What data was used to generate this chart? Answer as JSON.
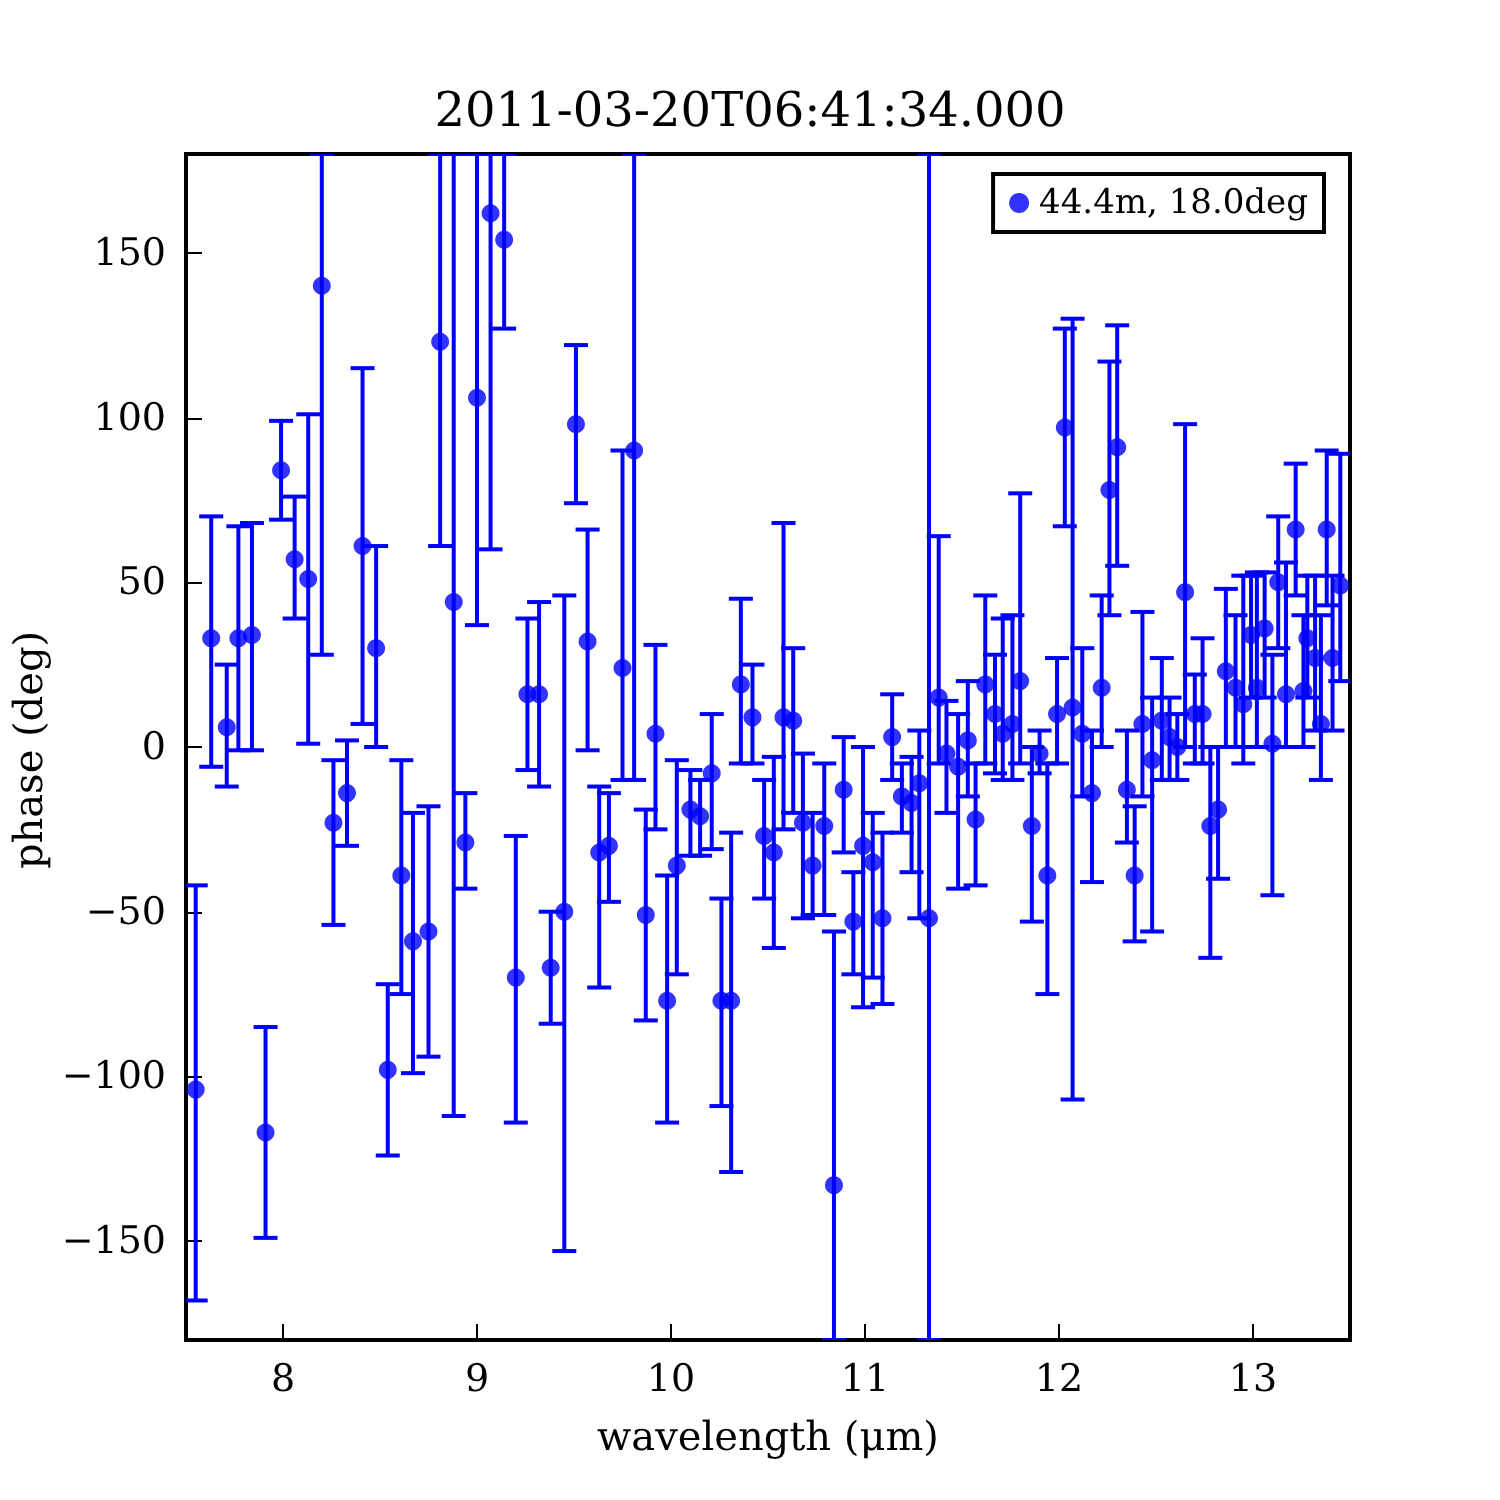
{
  "chart_data": {
    "type": "scatter",
    "title": "2011-03-20T06:41:34.000",
    "xlabel": "wavelength (μm)",
    "ylabel": "phase (deg)",
    "xlim": [
      7.5,
      13.5
    ],
    "xticks": [
      8,
      9,
      10,
      11,
      12,
      13
    ],
    "ylim": [
      -180,
      180
    ],
    "yticks": [
      {
        "value": -150,
        "label": "−150"
      },
      {
        "value": -100,
        "label": "−100"
      },
      {
        "value": -50,
        "label": "−50"
      },
      0,
      50,
      100,
      150
    ],
    "grid": false,
    "legend": "top right",
    "marker": "circle",
    "series": [
      {
        "name": "44.4m, 18.0deg",
        "color": "#0000ff",
        "x": [
          7.55,
          7.63,
          7.71,
          7.77,
          7.84,
          7.91,
          7.99,
          8.06,
          8.13,
          8.2,
          8.26,
          8.33,
          8.41,
          8.48,
          8.54,
          8.61,
          8.67,
          8.75,
          8.81,
          8.88,
          8.94,
          9.0,
          9.07,
          9.14,
          9.2,
          9.26,
          9.32,
          9.38,
          9.45,
          9.51,
          9.57,
          9.63,
          9.68,
          9.75,
          9.81,
          9.87,
          9.92,
          9.98,
          10.03,
          10.1,
          10.15,
          10.21,
          10.26,
          10.31,
          10.36,
          10.42,
          10.48,
          10.53,
          10.58,
          10.63,
          10.68,
          10.73,
          10.79,
          10.84,
          10.89,
          10.94,
          10.99,
          11.04,
          11.09,
          11.14,
          11.19,
          11.24,
          11.28,
          11.33,
          11.38,
          11.42,
          11.48,
          11.53,
          11.57,
          11.62,
          11.67,
          11.71,
          11.76,
          11.8,
          11.86,
          11.9,
          11.94,
          11.99,
          12.03,
          12.07,
          12.12,
          12.17,
          12.22,
          12.26,
          12.3,
          12.35,
          12.39,
          12.43,
          12.48,
          12.53,
          12.57,
          12.61,
          12.65,
          12.7,
          12.74,
          12.78,
          12.82,
          12.86,
          12.91,
          12.95,
          12.99,
          13.02,
          13.06,
          13.1,
          13.13,
          13.17,
          13.22,
          13.26,
          13.28,
          13.32,
          13.35,
          13.38,
          13.41,
          13.45
        ],
        "values": [
          -104,
          33,
          6,
          33,
          34,
          -117,
          84,
          57,
          51,
          140,
          -23,
          -14,
          61,
          30,
          -98,
          -39,
          -59,
          -56,
          123,
          44,
          -29,
          106,
          162,
          154,
          -70,
          16,
          16,
          -67,
          -50,
          98,
          32,
          -32,
          -30,
          24,
          90,
          -51,
          4,
          -77,
          -36,
          -19,
          -21,
          -8,
          -77,
          -77,
          19,
          9,
          -27,
          -32,
          9,
          8,
          -23,
          -36,
          -24,
          -133,
          -13,
          -53,
          -30,
          -35,
          -52,
          3,
          -15,
          -17,
          -11,
          -52,
          15,
          -2,
          -6,
          2,
          -22,
          19,
          10,
          4,
          7,
          20,
          -24,
          -2,
          -39,
          10,
          97,
          12,
          4,
          -14,
          18,
          78,
          91,
          -13,
          -39,
          7,
          -4,
          8,
          3,
          0,
          47,
          10,
          10,
          -24,
          -19,
          23,
          18,
          13,
          34,
          18,
          36,
          1,
          50,
          16,
          66,
          17,
          33,
          27,
          7,
          66,
          27,
          49
        ],
        "errors": [
          [
            -168,
            -42
          ],
          [
            -6,
            70
          ],
          [
            -12,
            25
          ],
          [
            -1,
            67
          ],
          [
            -1,
            68
          ],
          [
            -149,
            -85
          ],
          [
            69,
            99
          ],
          [
            39,
            76
          ],
          [
            1,
            101
          ],
          [
            28,
            180
          ],
          [
            -54,
            -4
          ],
          [
            -30,
            2
          ],
          [
            7,
            115
          ],
          [
            0,
            61
          ],
          [
            -124,
            -72
          ],
          [
            -75,
            -4
          ],
          [
            -99,
            -20
          ],
          [
            -94,
            -18
          ],
          [
            61,
            180
          ],
          [
            -112,
            180
          ],
          [
            -43,
            -14
          ],
          [
            37,
            180
          ],
          [
            60,
            180
          ],
          [
            127,
            180
          ],
          [
            -114,
            -27
          ],
          [
            -7,
            39
          ],
          [
            -12,
            44
          ],
          [
            -84,
            -50
          ],
          [
            -153,
            46
          ],
          [
            74,
            122
          ],
          [
            -1,
            66
          ],
          [
            -73,
            -12
          ],
          [
            -47,
            -14
          ],
          [
            -10,
            90
          ],
          [
            -10,
            180
          ],
          [
            -83,
            -19
          ],
          [
            -25,
            31
          ],
          [
            -114,
            -39
          ],
          [
            -69,
            -4
          ],
          [
            -33,
            -7
          ],
          [
            -33,
            -10
          ],
          [
            -31,
            10
          ],
          [
            -109,
            -46
          ],
          [
            -129,
            -26
          ],
          [
            -5,
            45
          ],
          [
            -5,
            25
          ],
          [
            -46,
            -10
          ],
          [
            -61,
            -3
          ],
          [
            -25,
            68
          ],
          [
            -20,
            30
          ],
          [
            -52,
            -2
          ],
          [
            -51,
            -20
          ],
          [
            -51,
            -5
          ],
          [
            -180,
            -56
          ],
          [
            -32,
            3
          ],
          [
            -69,
            -38
          ],
          [
            -79,
            0
          ],
          [
            -70,
            -20
          ],
          [
            -78,
            -26
          ],
          [
            -10,
            16
          ],
          [
            -26,
            -5
          ],
          [
            -38,
            -3
          ],
          [
            -52,
            5
          ],
          [
            -180,
            180
          ],
          [
            -5,
            64
          ],
          [
            -20,
            14
          ],
          [
            -43,
            10
          ],
          [
            -15,
            20
          ],
          [
            -42,
            -5
          ],
          [
            -5,
            46
          ],
          [
            -8,
            28
          ],
          [
            -10,
            39
          ],
          [
            -10,
            40
          ],
          [
            -5,
            77
          ],
          [
            -53,
            0
          ],
          [
            -8,
            5
          ],
          [
            -75,
            -5
          ],
          [
            -5,
            27
          ],
          [
            67,
            127
          ],
          [
            -107,
            130
          ],
          [
            -15,
            30
          ],
          [
            -41,
            5
          ],
          [
            0,
            46
          ],
          [
            40,
            117
          ],
          [
            55,
            128
          ],
          [
            -29,
            5
          ],
          [
            -59,
            -18
          ],
          [
            -15,
            41
          ],
          [
            -56,
            15
          ],
          [
            -10,
            27
          ],
          [
            -10,
            15
          ],
          [
            -10,
            10
          ],
          [
            0,
            98
          ],
          [
            -5,
            22
          ],
          [
            -5,
            33
          ],
          [
            -64,
            0
          ],
          [
            -40,
            0
          ],
          [
            0,
            48
          ],
          [
            0,
            40
          ],
          [
            -5,
            52
          ],
          [
            15,
            52
          ],
          [
            0,
            53
          ],
          [
            15,
            53
          ],
          [
            -45,
            28
          ],
          [
            30,
            70
          ],
          [
            0,
            56
          ],
          [
            46,
            86
          ],
          [
            0,
            40
          ],
          [
            15,
            52
          ],
          [
            5,
            52
          ],
          [
            -10,
            40
          ],
          [
            43,
            90
          ],
          [
            5,
            52
          ],
          [
            20,
            89
          ]
        ]
      }
    ]
  }
}
